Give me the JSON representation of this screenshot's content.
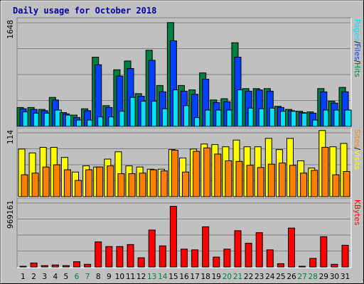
{
  "chart_data": {
    "type": "bar",
    "title": "Daily usage for October 2018",
    "categories": [
      "1",
      "2",
      "3",
      "4",
      "5",
      "6",
      "7",
      "8",
      "9",
      "10",
      "11",
      "12",
      "13",
      "14",
      "15",
      "16",
      "17",
      "18",
      "19",
      "20",
      "21",
      "22",
      "23",
      "24",
      "25",
      "26",
      "27",
      "28",
      "29",
      "30",
      "31"
    ],
    "weekend_days": [
      "6",
      "7",
      "13",
      "14",
      "20",
      "21",
      "27",
      "28"
    ],
    "panels": [
      {
        "id": "pages-files-hits",
        "max_label": "1648",
        "ymax": 1648,
        "legend": [
          "Pages",
          "/",
          "Files",
          "/",
          "Hits"
        ],
        "series": [
          {
            "name": "Hits",
            "color": "#008040",
            "values": [
              300,
              300,
              270,
              460,
              220,
              180,
              280,
              1100,
              330,
              900,
              1040,
              520,
              1210,
              650,
              1650,
              650,
              580,
              850,
              420,
              440,
              1330,
              600,
              600,
              600,
              320,
              270,
              240,
              230,
              600,
              400,
              620
            ]
          },
          {
            "name": "Files",
            "color": "#0040ff",
            "values": [
              280,
              270,
              250,
              420,
              200,
              140,
              250,
              980,
              300,
              800,
              920,
              480,
              1050,
              550,
              1360,
              560,
              510,
              750,
              380,
              390,
              1100,
              560,
              580,
              560,
              300,
              250,
              220,
              210,
              550,
              370,
              550
            ]
          },
          {
            "name": "Pages",
            "color": "#00e0ff",
            "values": [
              230,
              210,
              210,
              260,
              180,
              100,
              100,
              150,
              150,
              240,
              460,
              400,
              400,
              280,
              580,
              330,
              140,
              260,
              260,
              260,
              580,
              290,
              280,
              290,
              240,
              240,
              210,
              100,
              260,
              260,
              260
            ]
          }
        ]
      },
      {
        "id": "visits-sites",
        "max_label": "114",
        "ymax": 114,
        "legend": [
          "Sites",
          "/",
          "Visits"
        ],
        "series": [
          {
            "name": "Visits",
            "color": "#ffff00",
            "values": [
              85,
              78,
              88,
              88,
              70,
              44,
              55,
              53,
              67,
              80,
              55,
              53,
              49,
              49,
              84,
              69,
              85,
              94,
              93,
              89,
              101,
              89,
              89,
              104,
              84,
              104,
              64,
              51,
              118,
              89,
              95
            ]
          },
          {
            "name": "Sites",
            "color": "#ff8000",
            "values": [
              39,
              42,
              53,
              57,
              48,
              29,
              48,
              53,
              55,
              41,
              41,
              42,
              48,
              46,
              83,
              44,
              81,
              87,
              76,
              64,
              63,
              56,
              52,
              58,
              60,
              56,
              42,
              47,
              88,
              39,
              45
            ]
          }
        ]
      },
      {
        "id": "kbytes",
        "max_label": "969161",
        "ymax": 969161,
        "legend": [
          "KBytes"
        ],
        "series": [
          {
            "name": "KBytes",
            "color": "#ff0000",
            "values": [
              10000,
              60000,
              20000,
              30000,
              20000,
              80000,
              40000,
              380000,
              310000,
              310000,
              340000,
              140000,
              560000,
              320000,
              920000,
              270000,
              260000,
              610000,
              150000,
              270000,
              550000,
              360000,
              520000,
              260000,
              50000,
              590000,
              10000,
              130000,
              460000,
              40000,
              330000
            ]
          }
        ]
      }
    ]
  }
}
